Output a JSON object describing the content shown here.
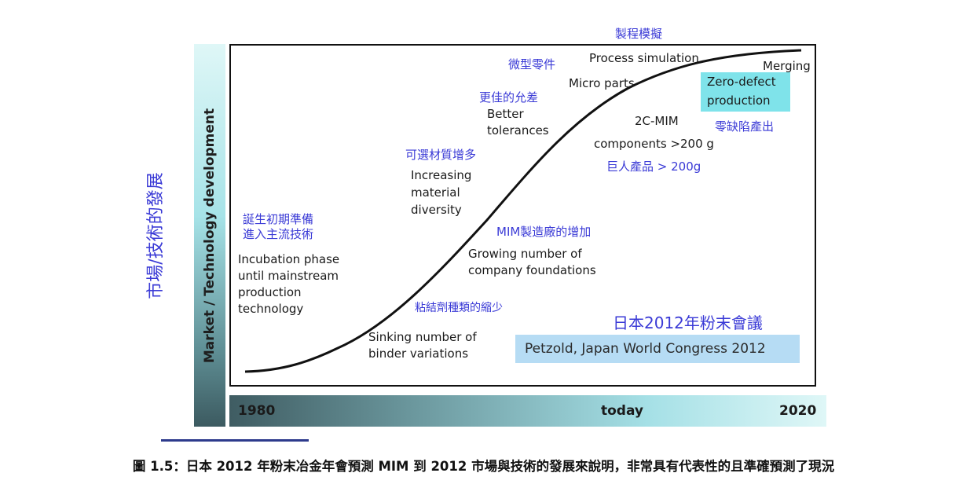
{
  "axis": {
    "y_label_cjk": "市場/技術的發展",
    "y_label_en": "Market / Technology development",
    "x_ticks": [
      "1980",
      "today",
      "2020"
    ]
  },
  "annotations": {
    "incubation_cjk": [
      "誕生初期準備",
      "進入主流技術"
    ],
    "incubation_en": [
      "Incubation phase",
      "until mainstream",
      "production",
      "technology"
    ],
    "sinking_cjk": "粘結劑種類的縮少",
    "sinking_en": [
      "Sinking number of",
      "binder variations"
    ],
    "growing_cjk": "MIM製造廠的增加",
    "growing_en": [
      "Growing number of",
      "company foundations"
    ],
    "diversity_cjk": "可選材質增多",
    "diversity_en": [
      "Increasing",
      "material",
      "diversity"
    ],
    "tolerances_cjk": "更佳的允差",
    "tolerances_en": [
      "Better",
      "tolerances"
    ],
    "micro_cjk": "微型零件",
    "micro_en": "Micro parts",
    "process_cjk": "製程模擬",
    "process_en": "Process simulation",
    "merging_en": "Merging",
    "zero_defect_en": [
      "Zero-defect",
      "production"
    ],
    "zero_defect_cjk": "零缺陷產出",
    "twoc_en": [
      "2C-MIM",
      "components >200 g"
    ],
    "twoc_cjk": "巨人產品 > 200g"
  },
  "conference_cjk": "日本2012年粉末會議",
  "citation": "Petzold, Japan World Congress 2012",
  "caption": "圖 1.5：日本 2012 年粉末冶金年會預測 MIM 到 2012 市場與技術的發展來說明，非常具有代表性的且準確預測了現況",
  "colors": {
    "blue_text": "#3a3ad6",
    "zero_defect_fill": "#7fe3ea",
    "citation_fill": "#b6dcf4",
    "curve": "#111111"
  }
}
